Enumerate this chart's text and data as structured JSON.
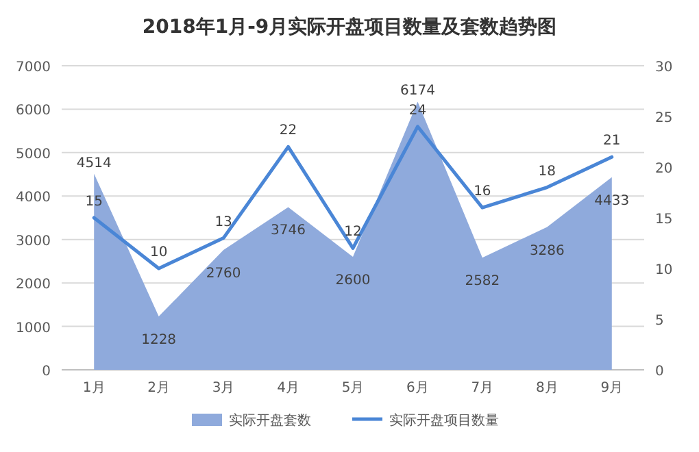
{
  "chart_data": {
    "type": "area",
    "title": "2018年1月-9月实际开盘项目数量及套数趋势图",
    "categories": [
      "1月",
      "2月",
      "3月",
      "4月",
      "5月",
      "6月",
      "7月",
      "8月",
      "9月"
    ],
    "series": [
      {
        "name": "实际开盘套数",
        "type": "area",
        "color": "#8faadc",
        "values": [
          4514,
          1228,
          2760,
          3746,
          2600,
          6174,
          2582,
          3286,
          4433
        ]
      },
      {
        "name": "实际开盘项目数量",
        "type": "line",
        "axis": "y2",
        "color": "#4a86d6",
        "values": [
          15,
          10,
          13,
          22,
          12,
          24,
          16,
          18,
          21
        ]
      }
    ],
    "ylim": [
      0,
      7000
    ],
    "yticks": [
      0,
      1000,
      2000,
      3000,
      4000,
      5000,
      6000,
      7000
    ],
    "y2lim": [
      0,
      30
    ],
    "y2ticks": [
      0,
      5,
      10,
      15,
      20,
      25,
      30
    ],
    "data_labels": true,
    "grid": "y",
    "legend": "bottom",
    "marker": "none",
    "line_style": "solid"
  }
}
